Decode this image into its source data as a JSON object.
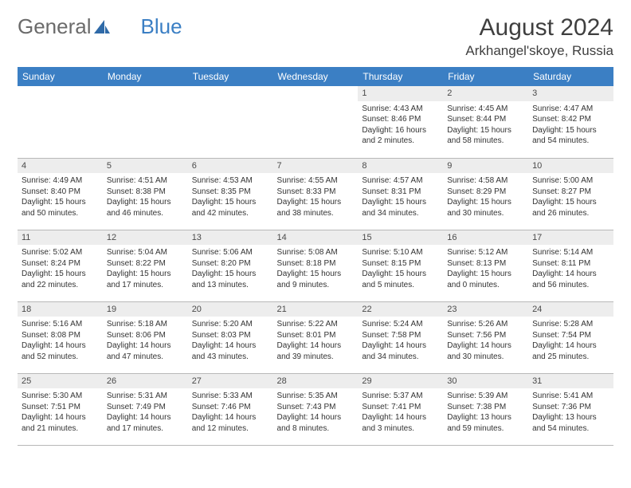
{
  "logo": {
    "text1": "General",
    "text2": "Blue"
  },
  "title": "August 2024",
  "location": "Arkhangel'skoye, Russia",
  "colors": {
    "header_bg": "#3b7fc4",
    "header_text": "#ffffff",
    "daynum_bg": "#ededed",
    "border": "#b8b8b8",
    "text": "#333333"
  },
  "weekdays": [
    "Sunday",
    "Monday",
    "Tuesday",
    "Wednesday",
    "Thursday",
    "Friday",
    "Saturday"
  ],
  "first_weekday_index": 4,
  "days": [
    {
      "n": 1,
      "sunrise": "4:43 AM",
      "sunset": "8:46 PM",
      "daylight": "16 hours and 2 minutes."
    },
    {
      "n": 2,
      "sunrise": "4:45 AM",
      "sunset": "8:44 PM",
      "daylight": "15 hours and 58 minutes."
    },
    {
      "n": 3,
      "sunrise": "4:47 AM",
      "sunset": "8:42 PM",
      "daylight": "15 hours and 54 minutes."
    },
    {
      "n": 4,
      "sunrise": "4:49 AM",
      "sunset": "8:40 PM",
      "daylight": "15 hours and 50 minutes."
    },
    {
      "n": 5,
      "sunrise": "4:51 AM",
      "sunset": "8:38 PM",
      "daylight": "15 hours and 46 minutes."
    },
    {
      "n": 6,
      "sunrise": "4:53 AM",
      "sunset": "8:35 PM",
      "daylight": "15 hours and 42 minutes."
    },
    {
      "n": 7,
      "sunrise": "4:55 AM",
      "sunset": "8:33 PM",
      "daylight": "15 hours and 38 minutes."
    },
    {
      "n": 8,
      "sunrise": "4:57 AM",
      "sunset": "8:31 PM",
      "daylight": "15 hours and 34 minutes."
    },
    {
      "n": 9,
      "sunrise": "4:58 AM",
      "sunset": "8:29 PM",
      "daylight": "15 hours and 30 minutes."
    },
    {
      "n": 10,
      "sunrise": "5:00 AM",
      "sunset": "8:27 PM",
      "daylight": "15 hours and 26 minutes."
    },
    {
      "n": 11,
      "sunrise": "5:02 AM",
      "sunset": "8:24 PM",
      "daylight": "15 hours and 22 minutes."
    },
    {
      "n": 12,
      "sunrise": "5:04 AM",
      "sunset": "8:22 PM",
      "daylight": "15 hours and 17 minutes."
    },
    {
      "n": 13,
      "sunrise": "5:06 AM",
      "sunset": "8:20 PM",
      "daylight": "15 hours and 13 minutes."
    },
    {
      "n": 14,
      "sunrise": "5:08 AM",
      "sunset": "8:18 PM",
      "daylight": "15 hours and 9 minutes."
    },
    {
      "n": 15,
      "sunrise": "5:10 AM",
      "sunset": "8:15 PM",
      "daylight": "15 hours and 5 minutes."
    },
    {
      "n": 16,
      "sunrise": "5:12 AM",
      "sunset": "8:13 PM",
      "daylight": "15 hours and 0 minutes."
    },
    {
      "n": 17,
      "sunrise": "5:14 AM",
      "sunset": "8:11 PM",
      "daylight": "14 hours and 56 minutes."
    },
    {
      "n": 18,
      "sunrise": "5:16 AM",
      "sunset": "8:08 PM",
      "daylight": "14 hours and 52 minutes."
    },
    {
      "n": 19,
      "sunrise": "5:18 AM",
      "sunset": "8:06 PM",
      "daylight": "14 hours and 47 minutes."
    },
    {
      "n": 20,
      "sunrise": "5:20 AM",
      "sunset": "8:03 PM",
      "daylight": "14 hours and 43 minutes."
    },
    {
      "n": 21,
      "sunrise": "5:22 AM",
      "sunset": "8:01 PM",
      "daylight": "14 hours and 39 minutes."
    },
    {
      "n": 22,
      "sunrise": "5:24 AM",
      "sunset": "7:58 PM",
      "daylight": "14 hours and 34 minutes."
    },
    {
      "n": 23,
      "sunrise": "5:26 AM",
      "sunset": "7:56 PM",
      "daylight": "14 hours and 30 minutes."
    },
    {
      "n": 24,
      "sunrise": "5:28 AM",
      "sunset": "7:54 PM",
      "daylight": "14 hours and 25 minutes."
    },
    {
      "n": 25,
      "sunrise": "5:30 AM",
      "sunset": "7:51 PM",
      "daylight": "14 hours and 21 minutes."
    },
    {
      "n": 26,
      "sunrise": "5:31 AM",
      "sunset": "7:49 PM",
      "daylight": "14 hours and 17 minutes."
    },
    {
      "n": 27,
      "sunrise": "5:33 AM",
      "sunset": "7:46 PM",
      "daylight": "14 hours and 12 minutes."
    },
    {
      "n": 28,
      "sunrise": "5:35 AM",
      "sunset": "7:43 PM",
      "daylight": "14 hours and 8 minutes."
    },
    {
      "n": 29,
      "sunrise": "5:37 AM",
      "sunset": "7:41 PM",
      "daylight": "14 hours and 3 minutes."
    },
    {
      "n": 30,
      "sunrise": "5:39 AM",
      "sunset": "7:38 PM",
      "daylight": "13 hours and 59 minutes."
    },
    {
      "n": 31,
      "sunrise": "5:41 AM",
      "sunset": "7:36 PM",
      "daylight": "13 hours and 54 minutes."
    }
  ],
  "labels": {
    "sunrise": "Sunrise:",
    "sunset": "Sunset:",
    "daylight": "Daylight:"
  }
}
